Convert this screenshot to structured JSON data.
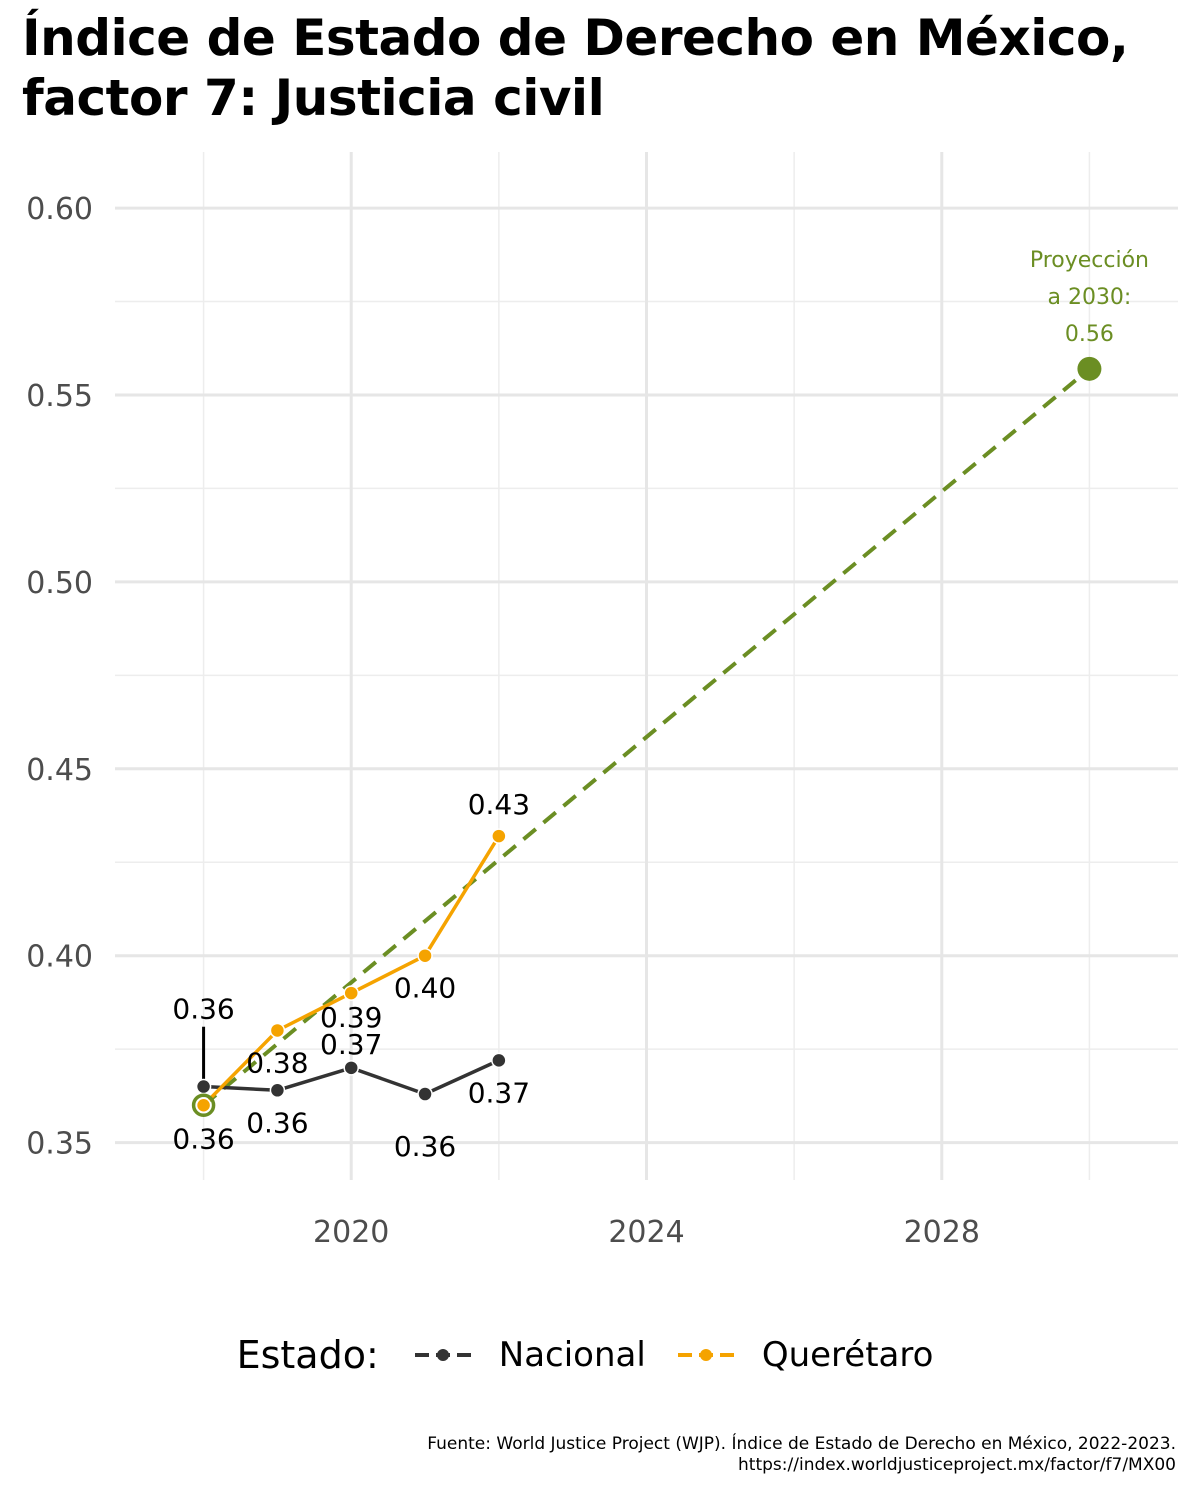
{
  "title": {
    "line1": "Índice de Estado de Derecho en México,",
    "line2": "factor 7: Justicia civil"
  },
  "chart_data": {
    "type": "line",
    "x": [
      2018,
      2019,
      2020,
      2021,
      2022
    ],
    "series": [
      {
        "name": "Nacional",
        "color": "#333333",
        "values": [
          0.365,
          0.364,
          0.37,
          0.363,
          0.372
        ],
        "labels": [
          "0.36",
          "0.36",
          "0.37",
          "0.36",
          "0.37"
        ]
      },
      {
        "name": "Querétaro",
        "color": "#f5a300",
        "values": [
          0.36,
          0.38,
          0.39,
          0.4,
          0.432
        ],
        "labels": [
          "0.36",
          "0.38",
          "0.39",
          "0.40",
          "0.43"
        ]
      }
    ],
    "projection": {
      "color": "#6b8e23",
      "style": "dashed",
      "from": {
        "x": 2018,
        "y": 0.36
      },
      "to": {
        "x": 2030,
        "y": 0.557
      },
      "annotation": [
        "Proyección",
        "a 2030:",
        "0.56"
      ]
    },
    "extra_label": {
      "x": 2018,
      "y": 0.381,
      "text": "0.36"
    },
    "xlim": [
      2016.8,
      2031.2
    ],
    "ylim": [
      0.34,
      0.615
    ],
    "x_ticks": [
      2020,
      2024,
      2028
    ],
    "x_minor": [
      2018,
      2022,
      2026,
      2030
    ],
    "y_ticks": [
      0.35,
      0.4,
      0.45,
      0.5,
      0.55,
      0.6
    ],
    "y_minor": [
      0.375,
      0.425,
      0.475,
      0.525,
      0.575
    ],
    "grid": true
  },
  "legend": {
    "title": "Estado:",
    "items": [
      {
        "label": "Nacional",
        "color": "#333333"
      },
      {
        "label": "Querétaro",
        "color": "#f5a300"
      }
    ]
  },
  "caption": {
    "line1": "Fuente: World Justice Project (WJP). Índice de Estado de Derecho en México, 2022-2023.",
    "line2": "https://index.worldjusticeproject.mx/factor/f7/MX00"
  }
}
